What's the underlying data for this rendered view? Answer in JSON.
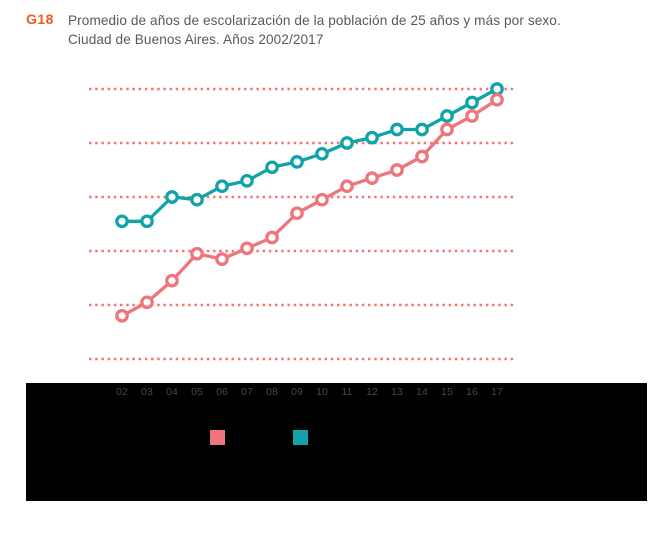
{
  "header": {
    "code": "G18",
    "title_line1": "Promedio de años de escolarización de la población de 25 años y más por sexo.",
    "title_line2": "Ciudad de Buenos Aires. Años 2002/2017"
  },
  "chart_data": {
    "type": "line",
    "title": "Promedio de años de escolarización de la población de 25 años y más por sexo. Ciudad de Buenos Aires. Años 2002/2017",
    "x": [
      2002,
      2003,
      2004,
      2005,
      2006,
      2007,
      2008,
      2009,
      2010,
      2011,
      2012,
      2013,
      2014,
      2015,
      2016,
      2017
    ],
    "x_tick_labels": [
      "02",
      "03",
      "04",
      "05",
      "06",
      "07",
      "08",
      "09",
      "10",
      "11",
      "12",
      "13",
      "14",
      "15",
      "16",
      "17"
    ],
    "series": [
      {
        "name": "serie turquesa",
        "color": "#10a3a9",
        "values": [
          10.55,
          10.55,
          11.0,
          10.95,
          11.2,
          11.3,
          11.55,
          11.65,
          11.8,
          12.0,
          12.1,
          12.25,
          12.25,
          12.5,
          12.75,
          13.0
        ]
      },
      {
        "name": "serie rosa",
        "color": "#ef747b",
        "values": [
          8.8,
          9.05,
          9.45,
          9.95,
          9.85,
          10.05,
          10.25,
          10.7,
          10.95,
          11.2,
          11.35,
          11.5,
          11.75,
          12.25,
          12.5,
          12.8
        ]
      }
    ],
    "ylim": [
      8,
      13
    ],
    "gridline_values": [
      8,
      9,
      10,
      11,
      12,
      13
    ],
    "grid": "horizontal-dotted",
    "gridline_color": "#f27577",
    "marker": "circle-white-fill",
    "legend_position": "bottom",
    "ylabel": "",
    "xlabel": ""
  },
  "legend": {
    "items": [
      {
        "swatch_color": "#ef747b",
        "label": ""
      },
      {
        "swatch_color": "#10a3a9",
        "label": ""
      }
    ]
  },
  "colors": {
    "code_orange": "#ed5b21",
    "title_gray": "#58595b",
    "band_black": "#000000",
    "tick_label_gray": "#47474a"
  }
}
